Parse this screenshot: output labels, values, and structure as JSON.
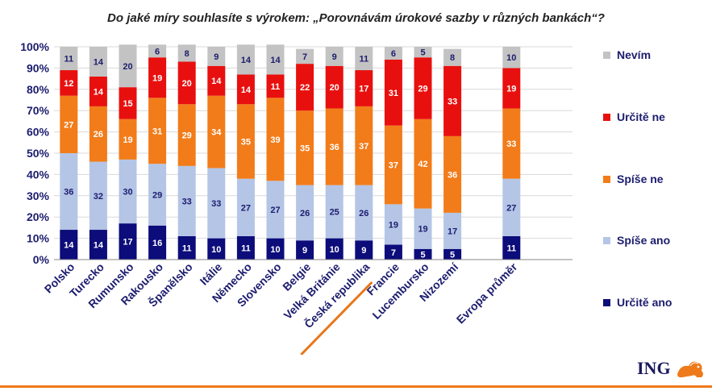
{
  "title": "Do jaké míry souhlasíte s výrokem: „Porovnávám úrokové sazby v různých bankách“?",
  "logo_text": "ING",
  "colors": {
    "nevim": "#c3c3c3",
    "urcite_ne": "#e8100e",
    "spise_ne": "#f27c1a",
    "spise_ano": "#b4c5e6",
    "urcite_ano": "#0c0c7a",
    "axis_text": "#1c1c6e",
    "highlight": "#e8761a"
  },
  "chart_data": {
    "type": "bar",
    "stacked": true,
    "percent": true,
    "categories": [
      "Polsko",
      "Turecko",
      "Rumunsko",
      "Rakousko",
      "Španělsko",
      "Itálie",
      "Německo",
      "Slovensko",
      "Belgie",
      "Velká Británie",
      "Česká republika",
      "Francie",
      "Lucembursko",
      "Nizozemí",
      "Evropa průměr"
    ],
    "highlight_category": "Česká republika",
    "ylim": [
      0,
      100
    ],
    "yticks": [
      "0%",
      "10%",
      "20%",
      "30%",
      "40%",
      "50%",
      "60%",
      "70%",
      "80%",
      "90%",
      "100%"
    ],
    "legend_position": "right",
    "series": [
      {
        "name": "Určitě ano",
        "key": "urcite_ano",
        "values": [
          14,
          14,
          17,
          16,
          11,
          10,
          11,
          10,
          9,
          10,
          9,
          7,
          5,
          5,
          11
        ]
      },
      {
        "name": "Spíše ano",
        "key": "spise_ano",
        "values": [
          36,
          32,
          30,
          29,
          33,
          33,
          27,
          27,
          26,
          25,
          26,
          19,
          19,
          17,
          27
        ]
      },
      {
        "name": "Spíše ne",
        "key": "spise_ne",
        "values": [
          27,
          26,
          19,
          31,
          29,
          34,
          35,
          39,
          35,
          36,
          37,
          37,
          42,
          36,
          33
        ]
      },
      {
        "name": "Určitě ne",
        "key": "urcite_ne",
        "values": [
          12,
          14,
          15,
          19,
          20,
          14,
          14,
          11,
          22,
          20,
          17,
          31,
          29,
          33,
          19
        ]
      },
      {
        "name": "Nevím",
        "key": "nevim",
        "values": [
          11,
          14,
          20,
          6,
          8,
          9,
          14,
          14,
          7,
          9,
          11,
          6,
          5,
          8,
          10
        ]
      }
    ],
    "legend_order": [
      "Nevím",
      "Určitě ne",
      "Spíše ne",
      "Spíše ano",
      "Určitě ano"
    ]
  }
}
